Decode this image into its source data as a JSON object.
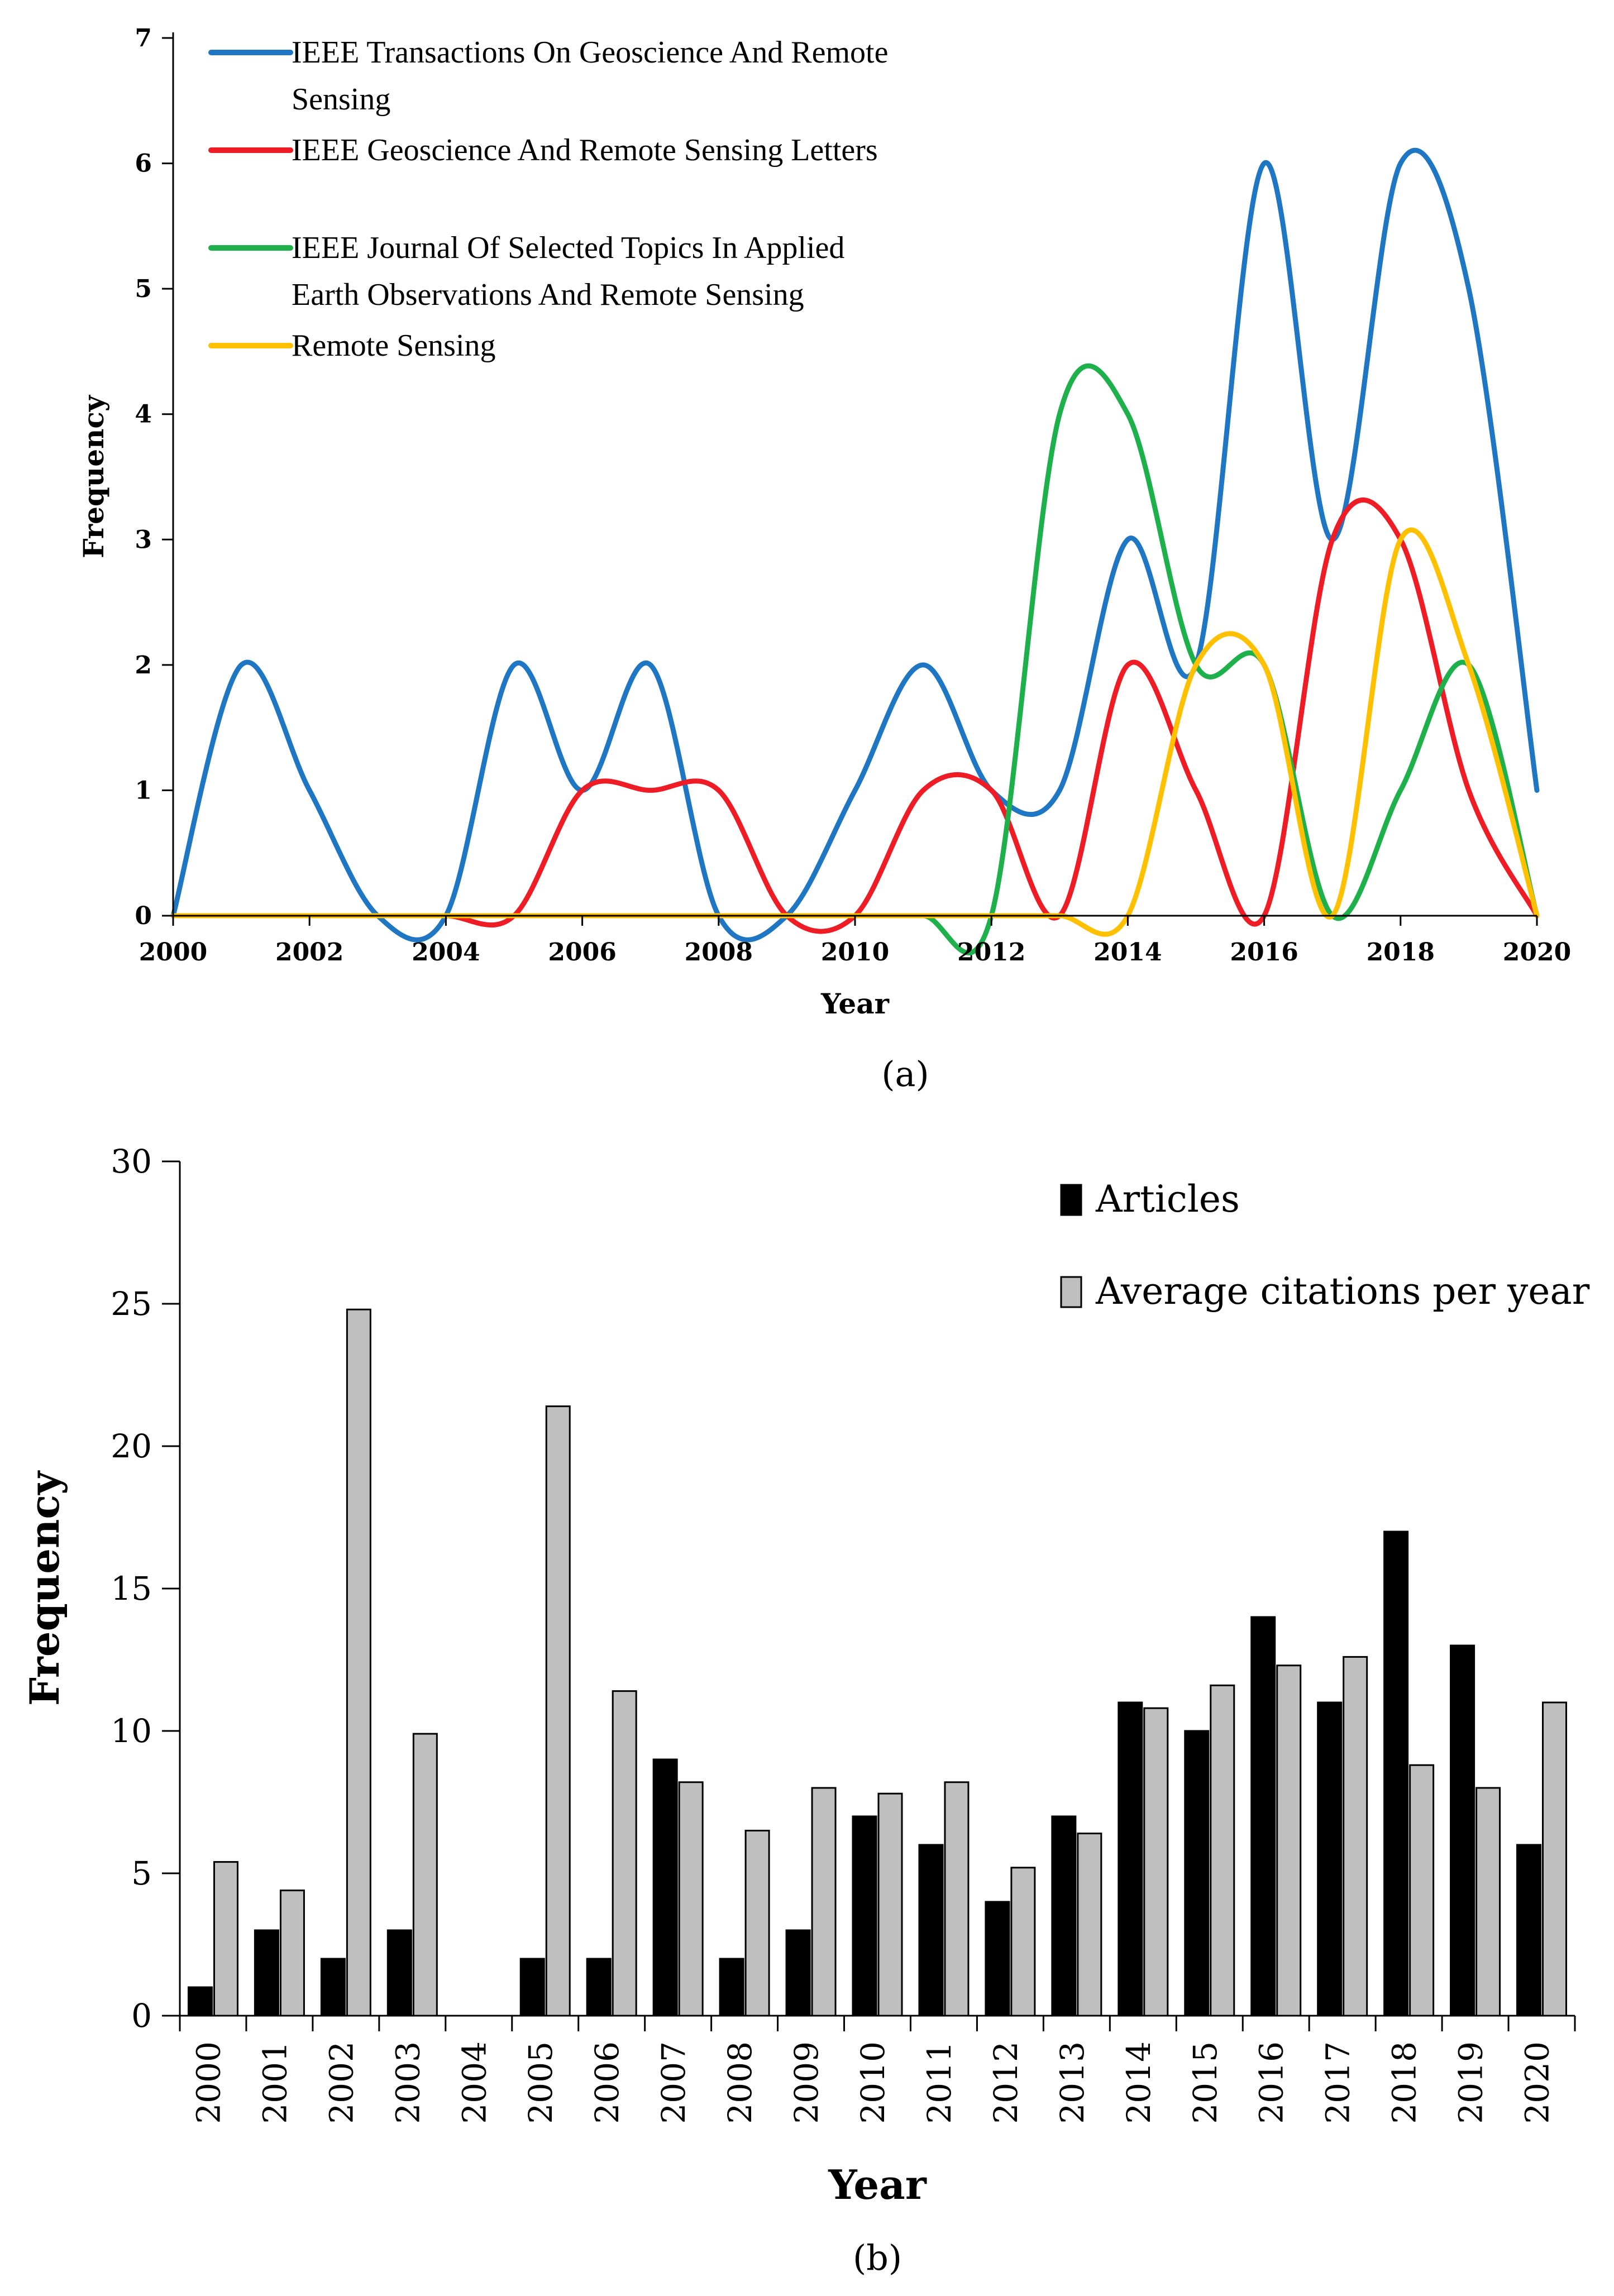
{
  "chart_data": [
    {
      "type": "line",
      "caption": "(a)",
      "caption_letter": "a",
      "xlabel": "Year",
      "ylabel": "Frequency",
      "xlim": [
        2000,
        2020
      ],
      "ylim": [
        0,
        7
      ],
      "xticks": [
        "2000",
        "2002",
        "2004",
        "2006",
        "2008",
        "2010",
        "2012",
        "2014",
        "2016",
        "2018",
        "2020"
      ],
      "yticks": [
        "0",
        "1",
        "2",
        "3",
        "4",
        "5",
        "6",
        "7"
      ],
      "x": [
        2000,
        2001,
        2002,
        2003,
        2004,
        2005,
        2006,
        2007,
        2008,
        2009,
        2010,
        2011,
        2012,
        2013,
        2014,
        2015,
        2016,
        2017,
        2018,
        2019,
        2020
      ],
      "series": [
        {
          "name": "IEEE Transactions On Geoscience And Remote Sensing",
          "legend_lines": [
            "IEEE Transactions On Geoscience And Remote",
            "Sensing"
          ],
          "color": "#1F77C4",
          "values": [
            0,
            2,
            1,
            0,
            0,
            2,
            1,
            2,
            0,
            0,
            1,
            2,
            1,
            1,
            3,
            2,
            6,
            3,
            6,
            5,
            1
          ]
        },
        {
          "name": "IEEE Geoscience And Remote Sensing Letters",
          "legend_lines": [
            "IEEE Geoscience And Remote Sensing Letters"
          ],
          "color": "#EE1C25",
          "values": [
            0,
            0,
            0,
            0,
            0,
            0,
            1,
            1,
            1,
            0,
            0,
            1,
            1,
            0,
            2,
            1,
            0,
            3,
            3,
            1,
            0
          ]
        },
        {
          "name": "IEEE Journal Of Selected Topics In Applied Earth Observations And Remote Sensing",
          "legend_lines": [
            "IEEE Journal Of Selected Topics In Applied",
            "Earth Observations And Remote Sensing"
          ],
          "color": "#1DB04B",
          "values": [
            0,
            0,
            0,
            0,
            0,
            0,
            0,
            0,
            0,
            0,
            0,
            0,
            0,
            4,
            4,
            2,
            2,
            0,
            1,
            2,
            0
          ]
        },
        {
          "name": "Remote Sensing",
          "legend_lines": [
            "Remote Sensing"
          ],
          "color": "#FFC000",
          "values": [
            0,
            0,
            0,
            0,
            0,
            0,
            0,
            0,
            0,
            0,
            0,
            0,
            0,
            0,
            0,
            2,
            2,
            0,
            3,
            2,
            0
          ]
        }
      ]
    },
    {
      "type": "bar",
      "caption": "(b)",
      "caption_letter": "b",
      "xlabel": "Year",
      "ylabel": "Frequency",
      "ylim": [
        0,
        30
      ],
      "yticks": [
        "0",
        "5",
        "10",
        "15",
        "20",
        "25",
        "30"
      ],
      "categories": [
        "2000",
        "2001",
        "2002",
        "2003",
        "2004",
        "2005",
        "2006",
        "2007",
        "2008",
        "2009",
        "2010",
        "2011",
        "2012",
        "2013",
        "2014",
        "2015",
        "2016",
        "2017",
        "2018",
        "2019",
        "2020"
      ],
      "series": [
        {
          "name": "Articles",
          "color": "#000000",
          "values": [
            1,
            3,
            2,
            3,
            0,
            2,
            2,
            9,
            2,
            3,
            7,
            6,
            4,
            7,
            11,
            10,
            14,
            11,
            17,
            13,
            6
          ]
        },
        {
          "name": "Average citations per year",
          "color": "#BFBFBF",
          "values": [
            5.4,
            4.4,
            24.8,
            9.9,
            0,
            21.4,
            11.4,
            8.2,
            6.5,
            8.0,
            7.8,
            8.2,
            5.2,
            6.4,
            10.8,
            11.6,
            12.3,
            12.6,
            8.8,
            8.0,
            11.0
          ]
        }
      ]
    }
  ]
}
